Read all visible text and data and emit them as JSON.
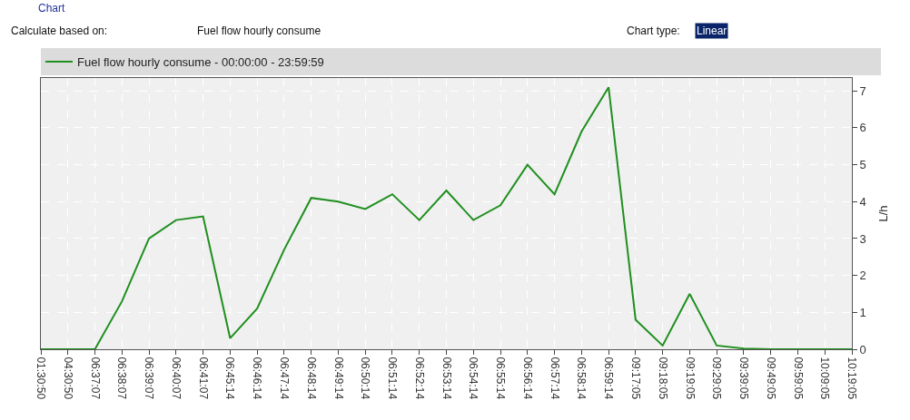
{
  "chart_data": {
    "type": "line",
    "categories": [
      "01:30:50",
      "04:30:50",
      "06:37:07",
      "06:38:07",
      "06:39:07",
      "06:40:07",
      "06:41:07",
      "06:45:14",
      "06:46:14",
      "06:47:14",
      "06:48:14",
      "06:49:14",
      "06:50:14",
      "06:51:14",
      "06:52:14",
      "06:53:14",
      "06:54:14",
      "06:55:14",
      "06:56:14",
      "06:57:14",
      "06:58:14",
      "06:59:14",
      "09:17:05",
      "09:18:05",
      "09:19:05",
      "09:29:05",
      "09:39:05",
      "09:49:05",
      "09:59:05",
      "10:09:05",
      "10:19:05"
    ],
    "series": [
      {
        "name": "Fuel flow hourly consume - 00:00:00 - 23:59:59",
        "color": "#1f8f1f",
        "values": [
          0,
          0,
          0,
          1.3,
          3.0,
          3.5,
          3.6,
          0.3,
          1.1,
          2.7,
          4.1,
          4.0,
          3.8,
          4.2,
          3.5,
          4.3,
          3.5,
          3.9,
          5.0,
          4.2,
          5.9,
          7.1,
          0.8,
          0.1,
          1.5,
          0.1,
          0.02,
          0,
          0,
          0,
          0
        ]
      }
    ],
    "ylabel": "L/h",
    "ylim": [
      0,
      7.35
    ],
    "yticks": [
      0,
      1,
      2,
      3,
      4,
      5,
      6,
      7
    ],
    "grid": true,
    "legend": "top left",
    "marker": "none",
    "line_style": "solid",
    "annotations": [
      "Chart",
      "Calculate based on:",
      "Fuel flow hourly consume",
      "Chart type:",
      "Linear"
    ]
  }
}
